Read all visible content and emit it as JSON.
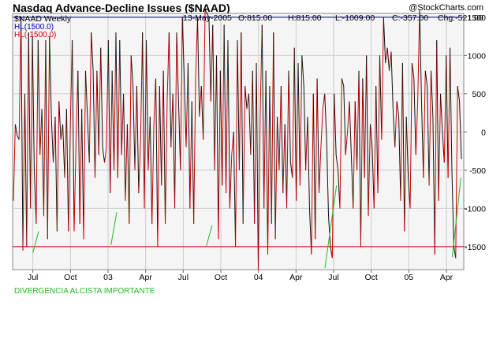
{
  "chart_data": {
    "type": "line",
    "title": "Nasdaq Advance-Decline Issues ($NAAD)",
    "watermark": "@StockCharts.com",
    "symbol_label": "$NAAD Weekly",
    "header": {
      "date": "13-May-2005",
      "open": "O:815.00",
      "high": "H:815.00",
      "low": "L:-1009.00",
      "close": "C:-357.00",
      "change": "Chg:-521.00"
    },
    "reference_lines": [
      {
        "label": "HL(1500.0)",
        "value": 1500,
        "color": "#0000aa"
      },
      {
        "label": "HL(-1500.0)",
        "value": -1500,
        "color": "#cc0000"
      }
    ],
    "ylim": [
      -1800,
      1550
    ],
    "y_ticks": [
      1500,
      1000,
      500,
      0,
      -500,
      -1000,
      -1500
    ],
    "y_tick_labels": [
      "1500",
      "1000",
      "500",
      "0",
      "-500",
      "-1000",
      "-1500"
    ],
    "x_ticks": [
      {
        "label": "Jul",
        "x": 7
      },
      {
        "label": "Oct",
        "x": 20
      },
      {
        "label": "03",
        "x": 33
      },
      {
        "label": "Apr",
        "x": 46
      },
      {
        "label": "Jul",
        "x": 59
      },
      {
        "label": "Oct",
        "x": 72
      },
      {
        "label": "04",
        "x": 85
      },
      {
        "label": "Apr",
        "x": 98
      },
      {
        "label": "Jul",
        "x": 111
      },
      {
        "label": "Oct",
        "x": 124
      },
      {
        "label": "05",
        "x": 137
      },
      {
        "label": "Apr",
        "x": 150
      }
    ],
    "xlim": [
      0,
      156
    ],
    "colors": {
      "up": "#cc0000",
      "down": "#111111",
      "divergence": "#22bb22",
      "plot_bg": "#f5f5f5"
    },
    "series": [
      {
        "values": [
          -900,
          100,
          -50,
          -100,
          1500,
          -1550,
          500,
          -1500,
          1300,
          -1000,
          1250,
          -500,
          -1200,
          1200,
          -300,
          300,
          -1100,
          1200,
          -1400,
          1250,
          200,
          -400,
          200,
          -1300,
          400,
          -100,
          100,
          -600,
          300,
          -1300,
          100,
          1200,
          -1300,
          -100,
          800,
          -1200,
          300,
          -1400,
          800,
          200,
          -400,
          1300,
          800,
          -600,
          800,
          -300,
          1100,
          -200,
          -400,
          -200,
          1200,
          -800,
          800,
          -500,
          1300,
          -600,
          1200,
          -300,
          500,
          -900,
          100,
          -1200,
          1000,
          600,
          -500,
          600,
          -800,
          -100,
          1300,
          -1000,
          1200,
          -500,
          200,
          -1200,
          100,
          700,
          -1500,
          600,
          -700,
          800,
          -1200,
          400,
          1300,
          -200,
          500,
          -1000,
          1300,
          400,
          -500,
          1500,
          700,
          -200,
          900,
          -1000,
          400,
          -1200,
          700,
          1500,
          200,
          600,
          -100,
          1600,
          1550,
          1500,
          400,
          1400,
          -500,
          1000,
          -1400,
          800,
          -700,
          1400,
          -800,
          1200,
          -1000,
          -300,
          0,
          -1500,
          1200,
          -500,
          1300,
          -1200,
          600,
          300,
          500,
          -300,
          800,
          -1200,
          900,
          -1800,
          200,
          1400,
          -1000,
          800,
          -1600,
          600,
          -1200,
          1300,
          -1400,
          200,
          -500,
          600,
          -800,
          100,
          -1000,
          800,
          -400,
          -600,
          1100,
          -900,
          900,
          -700,
          1000,
          600,
          -500,
          200,
          -1000,
          -1600,
          500,
          -1400,
          700,
          -800,
          -200,
          300,
          500,
          -100,
          -1100,
          -1500,
          -1650,
          500,
          -300,
          -500,
          -1000,
          700,
          600,
          -300,
          0,
          400,
          -300,
          -1000,
          400,
          -500,
          800,
          -1500,
          700,
          -600,
          1000,
          -1100,
          100,
          -200,
          -1000,
          600,
          -800,
          1000,
          -100,
          1500,
          900,
          1100,
          800,
          1050,
          300,
          -200,
          400,
          200,
          -900,
          900,
          -1300,
          200,
          -600,
          -1000,
          900,
          700,
          -300,
          400,
          1600,
          400,
          -600,
          800,
          600,
          -700,
          800,
          200,
          -1600,
          1200,
          -900,
          500,
          0,
          -400,
          1000,
          -600,
          1100,
          -500,
          -1500,
          -1650,
          600,
          400,
          -357
        ]
      }
    ],
    "divergence_lines": [
      {
        "from": [
          7,
          -1580
        ],
        "to": [
          9,
          -1300
        ]
      },
      {
        "from": [
          34,
          -1480
        ],
        "to": [
          36,
          -1050
        ]
      },
      {
        "from": [
          67,
          -1490
        ],
        "to": [
          69,
          -1220
        ]
      },
      {
        "from": [
          108,
          -1780
        ],
        "to": [
          112,
          -700
        ]
      },
      {
        "from": [
          152,
          -1640
        ],
        "to": [
          155,
          -600
        ]
      }
    ],
    "annotation": "DIVERGENCIA ALCISTA IMPORTANTE"
  }
}
